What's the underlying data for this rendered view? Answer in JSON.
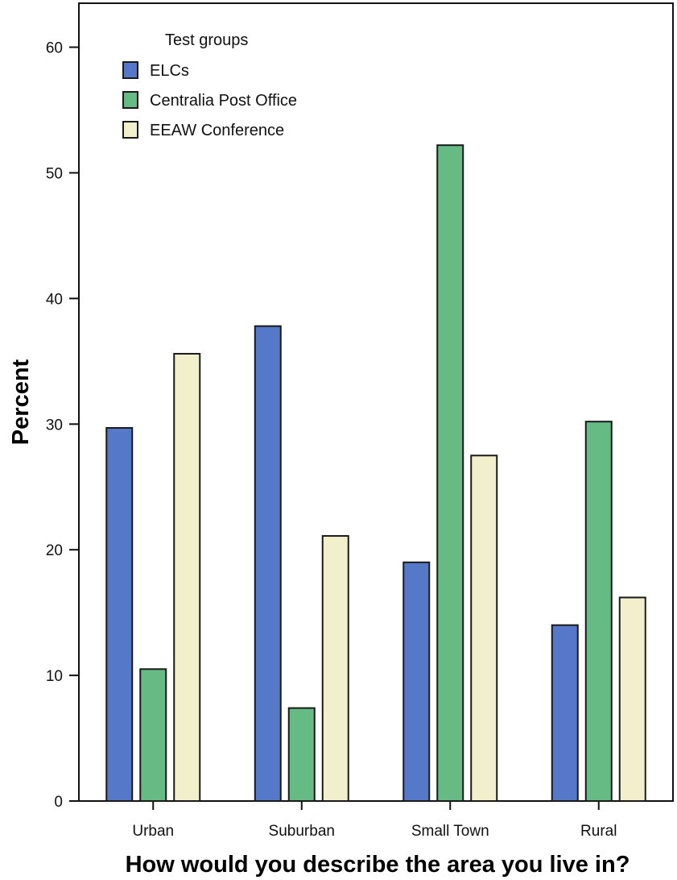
{
  "chart_data": {
    "type": "bar",
    "xlabel": "How would you describe the area you live in?",
    "ylabel": "Percent",
    "categories": [
      "Urban",
      "Suburban",
      "Small Town",
      "Rural"
    ],
    "series": [
      {
        "name": "ELCs",
        "color": "#5578c9",
        "values": [
          29.7,
          37.8,
          19.0,
          14.0
        ]
      },
      {
        "name": "Centralia Post Office",
        "color": "#66bb85",
        "values": [
          10.5,
          7.4,
          52.2,
          30.2
        ]
      },
      {
        "name": "EEAW Conference",
        "color": "#f2efcc",
        "values": [
          35.6,
          21.1,
          27.5,
          16.2
        ]
      }
    ],
    "ylim": [
      0,
      63.5
    ],
    "yticks": [
      0,
      10,
      20,
      30,
      40,
      50,
      60
    ],
    "legend": {
      "title": "Test groups",
      "position": "top-left"
    },
    "grid": false
  }
}
